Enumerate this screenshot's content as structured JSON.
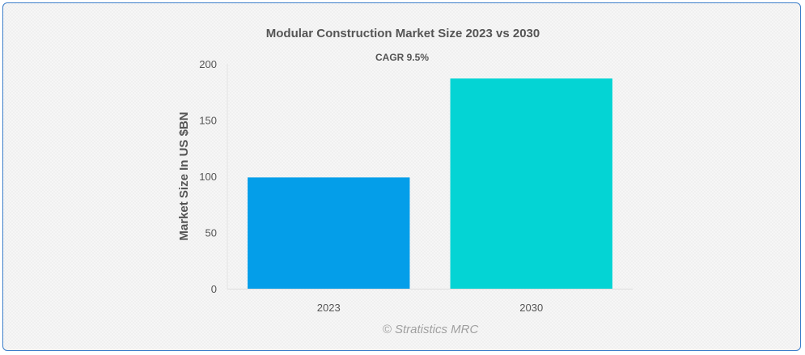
{
  "chart_data": {
    "type": "bar",
    "title": "Modular Construction Market Size 2023 vs 2030",
    "subtitle": "CAGR 9.5%",
    "categories": [
      "2023",
      "2030"
    ],
    "values": [
      99,
      187
    ],
    "colors": [
      "#049ee9",
      "#04d4d4"
    ],
    "xlabel": "",
    "ylabel": "Market Size In US $BN",
    "ylim": [
      0,
      200
    ],
    "yticks": [
      0,
      50,
      100,
      150,
      200
    ],
    "grid": false,
    "legend": "none"
  },
  "credit": "© Stratistics MRC"
}
